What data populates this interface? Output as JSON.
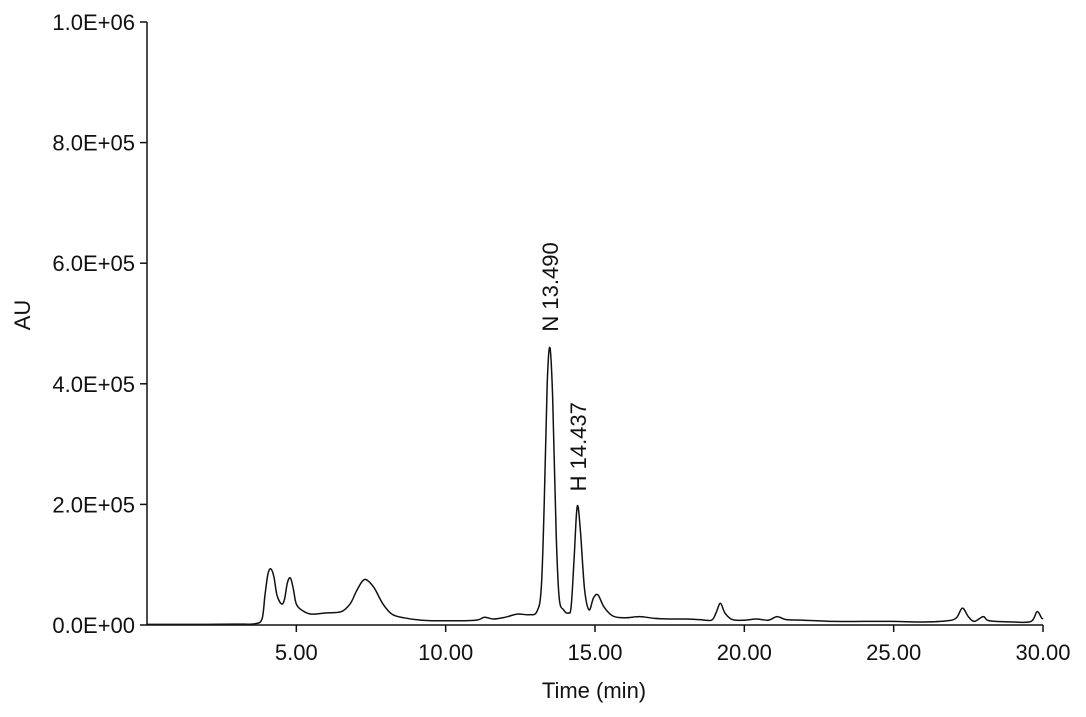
{
  "chart_data": {
    "type": "line",
    "title": "",
    "xlabel": "Time (min)",
    "ylabel": "AU",
    "xlim": [
      0,
      30
    ],
    "ylim": [
      0,
      1000000
    ],
    "x_ticks": [
      5,
      10,
      15,
      20,
      25,
      30
    ],
    "x_tick_labels": [
      "5.00",
      "10.00",
      "15.00",
      "20.00",
      "25.00",
      "30.00"
    ],
    "y_ticks": [
      0,
      200000,
      400000,
      600000,
      800000,
      1000000
    ],
    "y_tick_labels": [
      "0.0E+00",
      "2.0E+05",
      "4.0E+05",
      "6.0E+05",
      "8.0E+05",
      "1.0E+06"
    ],
    "grid": false,
    "colors": {
      "trace": "#111111",
      "axis": "#111111"
    },
    "series": [
      {
        "points": [
          [
            0.0,
            1000
          ],
          [
            1.0,
            1000
          ],
          [
            2.0,
            1000
          ],
          [
            3.0,
            1500
          ],
          [
            3.6,
            2000
          ],
          [
            3.85,
            10000
          ],
          [
            3.95,
            50000
          ],
          [
            4.05,
            85000
          ],
          [
            4.15,
            93000
          ],
          [
            4.25,
            80000
          ],
          [
            4.35,
            50000
          ],
          [
            4.5,
            35000
          ],
          [
            4.6,
            42000
          ],
          [
            4.7,
            70000
          ],
          [
            4.8,
            78000
          ],
          [
            4.9,
            60000
          ],
          [
            5.0,
            35000
          ],
          [
            5.2,
            24000
          ],
          [
            5.5,
            18000
          ],
          [
            6.0,
            20000
          ],
          [
            6.5,
            22000
          ],
          [
            6.8,
            35000
          ],
          [
            7.0,
            55000
          ],
          [
            7.2,
            72000
          ],
          [
            7.35,
            75000
          ],
          [
            7.6,
            62000
          ],
          [
            7.9,
            35000
          ],
          [
            8.2,
            18000
          ],
          [
            8.6,
            12000
          ],
          [
            9.2,
            8000
          ],
          [
            10.0,
            7000
          ],
          [
            11.0,
            8000
          ],
          [
            11.3,
            13000
          ],
          [
            11.6,
            10000
          ],
          [
            12.0,
            13000
          ],
          [
            12.4,
            18000
          ],
          [
            12.8,
            17000
          ],
          [
            13.05,
            22000
          ],
          [
            13.2,
            60000
          ],
          [
            13.3,
            200000
          ],
          [
            13.4,
            400000
          ],
          [
            13.49,
            460000
          ],
          [
            13.58,
            380000
          ],
          [
            13.7,
            150000
          ],
          [
            13.8,
            45000
          ],
          [
            13.95,
            25000
          ],
          [
            14.1,
            20000
          ],
          [
            14.2,
            30000
          ],
          [
            14.3,
            110000
          ],
          [
            14.38,
            185000
          ],
          [
            14.437,
            195000
          ],
          [
            14.52,
            150000
          ],
          [
            14.65,
            60000
          ],
          [
            14.8,
            25000
          ],
          [
            14.95,
            45000
          ],
          [
            15.1,
            50000
          ],
          [
            15.3,
            30000
          ],
          [
            15.6,
            15000
          ],
          [
            16.0,
            12000
          ],
          [
            16.5,
            14000
          ],
          [
            17.0,
            11000
          ],
          [
            17.5,
            10000
          ],
          [
            18.0,
            10000
          ],
          [
            18.5,
            9000
          ],
          [
            18.9,
            8000
          ],
          [
            19.05,
            20000
          ],
          [
            19.2,
            36000
          ],
          [
            19.35,
            20000
          ],
          [
            19.6,
            9000
          ],
          [
            20.0,
            8000
          ],
          [
            20.4,
            10000
          ],
          [
            20.8,
            8000
          ],
          [
            21.1,
            14000
          ],
          [
            21.4,
            9000
          ],
          [
            22.0,
            8000
          ],
          [
            23.0,
            6000
          ],
          [
            24.0,
            6000
          ],
          [
            25.0,
            6000
          ],
          [
            26.0,
            5000
          ],
          [
            26.8,
            7000
          ],
          [
            27.1,
            12000
          ],
          [
            27.3,
            28000
          ],
          [
            27.5,
            14000
          ],
          [
            27.7,
            6000
          ],
          [
            28.0,
            14000
          ],
          [
            28.2,
            7000
          ],
          [
            29.0,
            5000
          ],
          [
            29.6,
            6000
          ],
          [
            29.8,
            22000
          ],
          [
            29.95,
            12000
          ],
          [
            30.0,
            10000
          ]
        ]
      }
    ],
    "annotations": [
      {
        "text": "N 13.490",
        "x": 13.49,
        "y": 460000,
        "rotation": "vertical"
      },
      {
        "text": "H 14.437",
        "x": 14.437,
        "y": 195000,
        "rotation": "vertical"
      }
    ]
  }
}
